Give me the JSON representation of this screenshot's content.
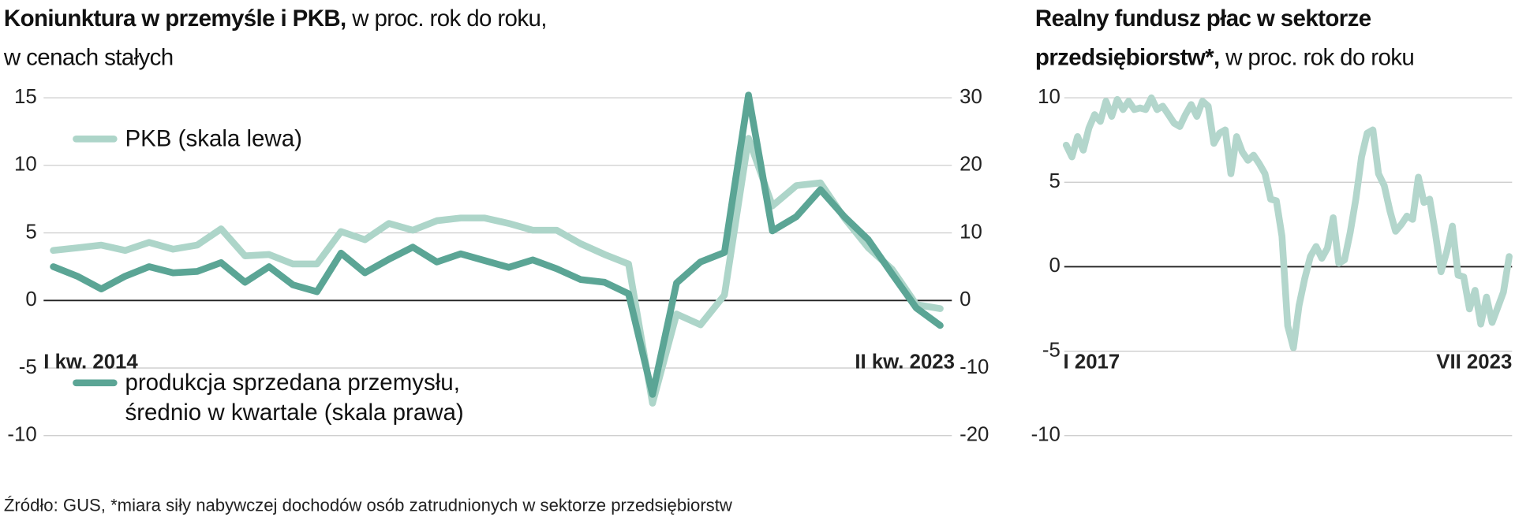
{
  "chart_data": [
    {
      "type": "line",
      "title": "Koniunktura w przemyśle i PKB,",
      "subtitle": "w proc. rok do roku, w cenach stałych",
      "categories": [
        "I kw. 2014",
        null,
        null,
        null,
        null,
        null,
        null,
        null,
        null,
        null,
        null,
        null,
        null,
        null,
        null,
        null,
        null,
        null,
        null,
        null,
        null,
        null,
        null,
        null,
        null,
        null,
        null,
        null,
        null,
        null,
        null,
        null,
        null,
        null,
        null,
        null,
        null,
        "II kw. 2023"
      ],
      "ylim": [
        -10,
        15
      ],
      "yticks": [
        -10,
        -5,
        0,
        5,
        10,
        15
      ],
      "y2lim": [
        -20,
        30
      ],
      "y2ticks": [
        -20,
        -10,
        0,
        10,
        20,
        30
      ],
      "grid": true,
      "series": [
        {
          "name": "PKB (skala lewa)",
          "color": "#add5c9",
          "values": [
            3.7,
            3.9,
            4.1,
            3.7,
            4.3,
            3.8,
            4.1,
            5.3,
            3.3,
            3.4,
            2.7,
            2.7,
            5.1,
            4.5,
            5.7,
            5.2,
            5.9,
            6.1,
            6.1,
            5.7,
            5.2,
            5.2,
            4.2,
            3.4,
            2.7,
            -7.6,
            -1.0,
            -1.8,
            0.4,
            12.0,
            7.0,
            8.5,
            8.7,
            6.1,
            3.9,
            2.3,
            -0.3,
            -0.6
          ]
        },
        {
          "name": "produkcja sprzedana przemysłu, średnio w kwartale (skala prawa)",
          "color": "#5ba595",
          "axis": "y2",
          "values": [
            5.0,
            3.6,
            1.7,
            3.6,
            5.0,
            4.1,
            4.3,
            5.6,
            2.7,
            5.0,
            2.3,
            1.3,
            7.0,
            4.1,
            6.1,
            7.9,
            5.7,
            6.9,
            5.9,
            4.9,
            6.0,
            4.7,
            3.1,
            2.7,
            1.0,
            -13.9,
            2.6,
            5.7,
            7.1,
            30.4,
            10.3,
            12.4,
            16.4,
            12.4,
            9.0,
            3.9,
            -1.1,
            -3.7
          ]
        }
      ]
    },
    {
      "type": "line",
      "title": "Realny fundusz płac w sektorze przedsiębiorstw*,",
      "subtitle": "w proc. rok do roku",
      "categories": [
        "I 2017",
        null,
        null,
        null,
        null,
        null,
        null,
        null,
        null,
        null,
        null,
        null,
        null,
        null,
        null,
        null,
        null,
        null,
        null,
        null,
        null,
        null,
        null,
        null,
        null,
        null,
        null,
        null,
        null,
        null,
        null,
        null,
        null,
        null,
        null,
        null,
        null,
        null,
        null,
        null,
        null,
        null,
        null,
        null,
        null,
        null,
        null,
        null,
        null,
        null,
        null,
        null,
        null,
        null,
        null,
        null,
        null,
        null,
        null,
        null,
        null,
        null,
        null,
        null,
        null,
        null,
        null,
        null,
        null,
        null,
        null,
        null,
        null,
        null,
        null,
        null,
        null,
        null,
        "VII 2023"
      ],
      "ylim": [
        -10,
        10
      ],
      "yticks": [
        -10,
        -5,
        0,
        5,
        10
      ],
      "grid": true,
      "series": [
        {
          "color": "#b3d6cc",
          "values": [
            7.2,
            6.5,
            7.7,
            6.9,
            8.2,
            9.0,
            8.6,
            9.8,
            8.9,
            9.9,
            9.3,
            9.8,
            9.3,
            9.4,
            9.3,
            10.0,
            9.3,
            9.5,
            9.0,
            8.5,
            8.3,
            9.0,
            9.6,
            8.9,
            9.8,
            9.5,
            7.3,
            7.9,
            8.1,
            5.5,
            7.7,
            6.8,
            6.3,
            6.6,
            6.1,
            5.5,
            4.0,
            3.9,
            1.8,
            -3.5,
            -4.8,
            -2.3,
            -0.7,
            0.6,
            1.2,
            0.5,
            1.1,
            2.9,
            0.2,
            0.4,
            2.0,
            4.0,
            6.5,
            7.9,
            8.1,
            5.5,
            4.8,
            3.3,
            2.1,
            2.5,
            3.0,
            2.8,
            5.3,
            3.8,
            4.0,
            2.0,
            -0.3,
            0.9,
            2.4,
            -0.5,
            -0.6,
            -2.5,
            -1.4,
            -3.4,
            -1.8,
            -3.3,
            -2.4,
            -1.5,
            0.6
          ]
        }
      ]
    }
  ],
  "source": "Źródło: GUS, *miara siły nabywczej dochodów osób zatrudnionych w sektorze przedsiębiorstw"
}
